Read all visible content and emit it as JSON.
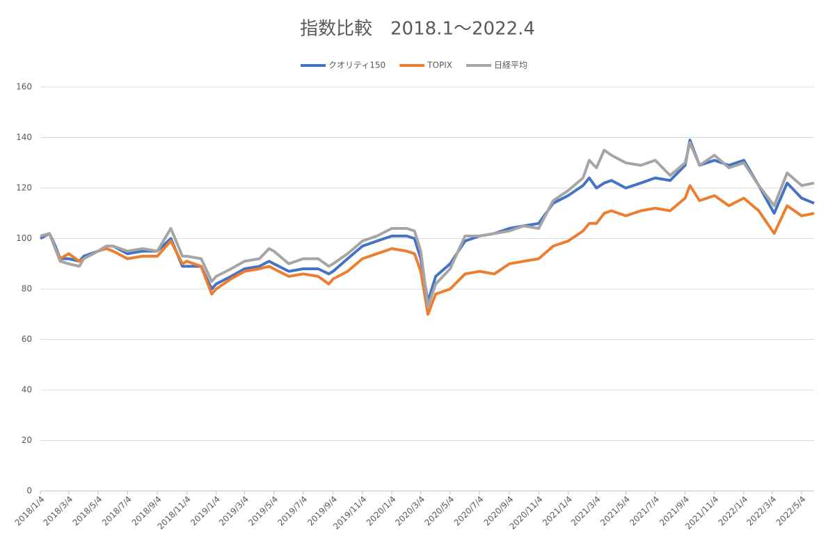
{
  "chart_data": {
    "type": "line",
    "title": "指数比較　2018.1～2022.4",
    "x": [
      "2018/1/4",
      "2018/1/23",
      "2018/2/4",
      "2018/2/14",
      "2018/3/4",
      "2018/3/26",
      "2018/4/4",
      "2018/5/4",
      "2018/5/21",
      "2018/6/4",
      "2018/7/4",
      "2018/8/4",
      "2018/9/4",
      "2018/10/2",
      "2018/10/26",
      "2018/11/4",
      "2018/12/4",
      "2018/12/26",
      "2019/1/4",
      "2019/2/4",
      "2019/3/4",
      "2019/4/4",
      "2019/4/24",
      "2019/5/4",
      "2019/6/4",
      "2019/7/4",
      "2019/8/4",
      "2019/8/26",
      "2019/9/4",
      "2019/10/4",
      "2019/11/4",
      "2019/12/4",
      "2020/1/4",
      "2020/2/4",
      "2020/2/20",
      "2020/3/4",
      "2020/3/19",
      "2020/4/4",
      "2020/5/4",
      "2020/6/4",
      "2020/7/4",
      "2020/8/4",
      "2020/9/4",
      "2020/10/4",
      "2020/11/4",
      "2020/12/4",
      "2021/1/4",
      "2021/2/4",
      "2021/2/17",
      "2021/3/4",
      "2021/3/20",
      "2021/4/4",
      "2021/5/4",
      "2021/6/4",
      "2021/7/4",
      "2021/8/4",
      "2021/9/4",
      "2021/9/14",
      "2021/10/4",
      "2021/11/4",
      "2021/12/4",
      "2022/1/4",
      "2022/2/4",
      "2022/3/8",
      "2022/4/4",
      "2022/5/4",
      "2022/5/30"
    ],
    "series": [
      {
        "name": "クオリティ150",
        "color": "#4472c4",
        "values": [
          100,
          102,
          97,
          92,
          92,
          91,
          93,
          95,
          97,
          97,
          94,
          95,
          95,
          100,
          89,
          89,
          89,
          80,
          82,
          85,
          88,
          89,
          91,
          90,
          87,
          88,
          88,
          86,
          87,
          92,
          97,
          99,
          101,
          101,
          100,
          92,
          75,
          85,
          90,
          99,
          101,
          102,
          104,
          105,
          106,
          114,
          117,
          121,
          124,
          120,
          122,
          123,
          120,
          122,
          124,
          123,
          129,
          139,
          129,
          131,
          129,
          131,
          121,
          110,
          122,
          116,
          114
        ]
      },
      {
        "name": "TOPIX",
        "color": "#ed7d31",
        "values": [
          101,
          102,
          96,
          92,
          94,
          91,
          92,
          95,
          96,
          95,
          92,
          93,
          93,
          99,
          90,
          91,
          89,
          78,
          80,
          84,
          87,
          88,
          89,
          88,
          85,
          86,
          85,
          82,
          84,
          87,
          92,
          94,
          96,
          95,
          94,
          87,
          70,
          78,
          80,
          86,
          87,
          86,
          90,
          91,
          92,
          97,
          99,
          103,
          106,
          106,
          110,
          111,
          109,
          111,
          112,
          111,
          116,
          121,
          115,
          117,
          113,
          116,
          111,
          102,
          113,
          109,
          110
        ]
      },
      {
        "name": "日経平均",
        "color": "#a5a5a5",
        "values": [
          101,
          102,
          96,
          91,
          90,
          89,
          92,
          95,
          97,
          97,
          95,
          96,
          95,
          104,
          93,
          93,
          92,
          83,
          85,
          88,
          91,
          92,
          96,
          95,
          90,
          92,
          92,
          89,
          90,
          94,
          99,
          101,
          104,
          104,
          103,
          95,
          73,
          82,
          88,
          101,
          101,
          102,
          103,
          105,
          104,
          115,
          119,
          124,
          131,
          128,
          135,
          133,
          130,
          129,
          131,
          125,
          130,
          138,
          129,
          133,
          128,
          130,
          121,
          113,
          126,
          121,
          122
        ]
      }
    ],
    "xlim": [
      "2018/1/4",
      "2022/5/30"
    ],
    "xticks": [
      "2018/1/4",
      "2018/3/4",
      "2018/5/4",
      "2018/7/4",
      "2018/9/4",
      "2018/11/4",
      "2019/1/4",
      "2019/3/4",
      "2019/5/4",
      "2019/7/4",
      "2019/9/4",
      "2019/11/4",
      "2020/1/4",
      "2020/3/4",
      "2020/5/4",
      "2020/7/4",
      "2020/9/4",
      "2020/11/4",
      "2021/1/4",
      "2021/3/4",
      "2021/5/4",
      "2021/7/4",
      "2021/9/4",
      "2021/11/4",
      "2022/1/4",
      "2022/3/4",
      "2022/5/4"
    ],
    "ylim": [
      0,
      160
    ],
    "yticks": [
      0,
      20,
      40,
      60,
      80,
      100,
      120,
      140,
      160
    ],
    "grid": true,
    "legend": "top"
  }
}
